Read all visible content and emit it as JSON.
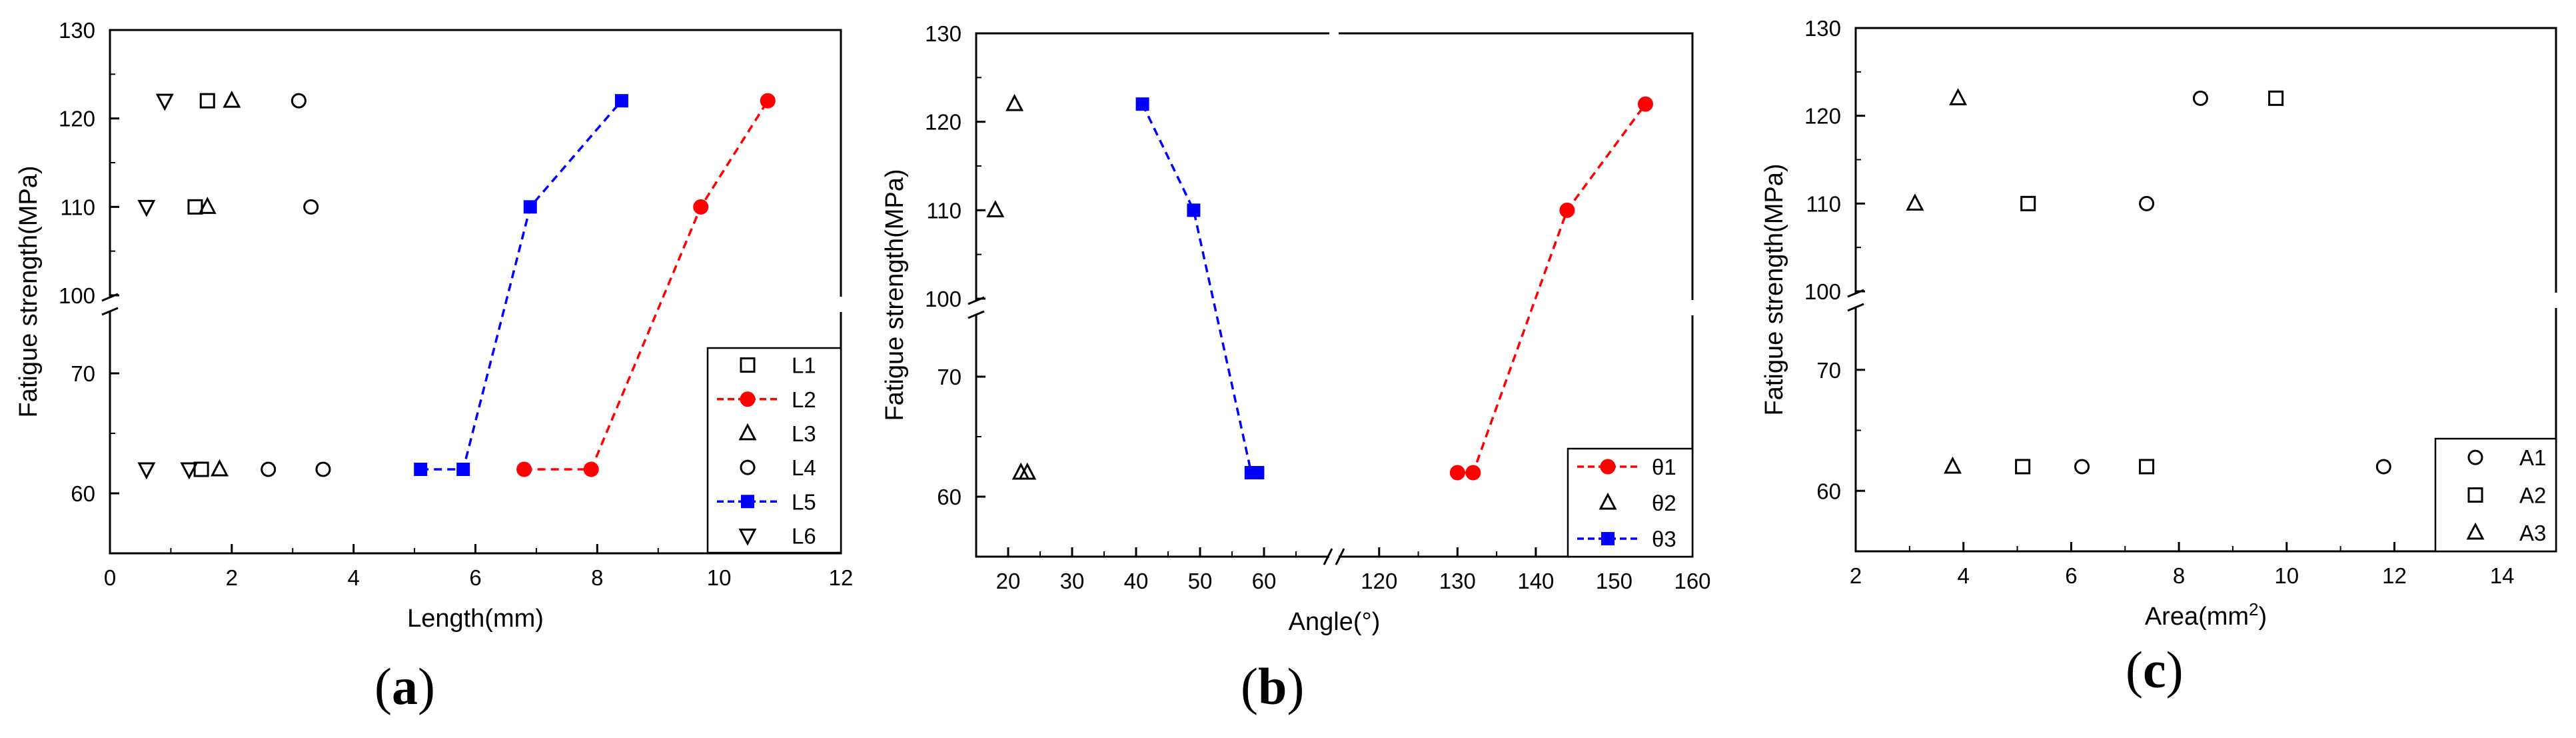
{
  "chart_data": [
    {
      "type": "line",
      "panel_label": "a",
      "xlabel": "Length(mm)",
      "ylabel": "Fatigue strength(MPa)",
      "xlim": [
        0,
        12
      ],
      "xticks": [
        0,
        2,
        4,
        6,
        8,
        10,
        12
      ],
      "ylim": [
        55,
        130
      ],
      "y_axis_break": [
        75,
        100
      ],
      "yticks": [
        60,
        70,
        100,
        110,
        120,
        130
      ],
      "legend_position": "bottom-right",
      "series": [
        {
          "name": "L1",
          "marker": "square",
          "color": "#000000",
          "line": false,
          "points": [
            [
              1.6,
              122
            ],
            [
              1.4,
              110
            ],
            [
              1.5,
              62
            ]
          ]
        },
        {
          "name": "L2",
          "marker": "circle-filled",
          "color": "#ff0000",
          "line": true,
          "points": [
            [
              6.8,
              62
            ],
            [
              7.9,
              62
            ],
            [
              9.7,
              110
            ],
            [
              10.8,
              122
            ]
          ]
        },
        {
          "name": "L3",
          "marker": "triangle-up",
          "color": "#000000",
          "line": false,
          "points": [
            [
              2.0,
              122
            ],
            [
              1.6,
              110
            ],
            [
              1.8,
              62
            ]
          ]
        },
        {
          "name": "L4",
          "marker": "circle",
          "color": "#000000",
          "line": false,
          "points": [
            [
              3.1,
              122
            ],
            [
              3.3,
              110
            ],
            [
              2.6,
              62
            ],
            [
              3.5,
              62
            ]
          ]
        },
        {
          "name": "L5",
          "marker": "square-filled",
          "color": "#0000ff",
          "line": true,
          "points": [
            [
              5.1,
              62
            ],
            [
              5.8,
              62
            ],
            [
              6.9,
              110
            ],
            [
              8.4,
              122
            ]
          ]
        },
        {
          "name": "L6",
          "marker": "triangle-down",
          "color": "#000000",
          "line": false,
          "points": [
            [
              0.9,
              122
            ],
            [
              0.6,
              110
            ],
            [
              0.6,
              62
            ],
            [
              1.3,
              62
            ]
          ]
        }
      ]
    },
    {
      "type": "line",
      "panel_label": "b",
      "xlabel": "Angle(°)",
      "ylabel": "Fatigue strength(MPa)",
      "x_axis_break": [
        60,
        120
      ],
      "x_segments": [
        {
          "range": [
            15,
            70
          ],
          "ticks": [
            20,
            30,
            40,
            50,
            60
          ]
        },
        {
          "range": [
            115,
            160
          ],
          "ticks": [
            120,
            130,
            140,
            150,
            160
          ]
        }
      ],
      "ylim": [
        55,
        130
      ],
      "y_axis_break": [
        75,
        100
      ],
      "yticks": [
        60,
        70,
        100,
        110,
        120,
        130
      ],
      "legend_position": "bottom-right",
      "series": [
        {
          "name": "θ1",
          "marker": "circle-filled",
          "color": "#ff0000",
          "line": true,
          "points": [
            [
              130,
              62
            ],
            [
              132,
              62
            ],
            [
              144,
              110
            ],
            [
              154,
              122
            ]
          ]
        },
        {
          "name": "θ2",
          "marker": "triangle-up",
          "color": "#000000",
          "line": false,
          "points": [
            [
              21,
              122
            ],
            [
              18,
              110
            ],
            [
              22,
              62
            ],
            [
              23,
              62
            ]
          ]
        },
        {
          "name": "θ3",
          "marker": "square-filled",
          "color": "#0000ff",
          "line": true,
          "points": [
            [
              41,
              122
            ],
            [
              49,
              110
            ],
            [
              58,
              62
            ],
            [
              59,
              62
            ]
          ]
        }
      ]
    },
    {
      "type": "scatter",
      "panel_label": "c",
      "xlabel": "Area(mm",
      "xlabel_sup": "2",
      "xlabel_close": ")",
      "ylabel": "Fatigue strength(MPa)",
      "xlim": [
        2,
        15
      ],
      "xticks": [
        2,
        4,
        6,
        8,
        10,
        12,
        14
      ],
      "ylim": [
        55,
        130
      ],
      "y_axis_break": [
        75,
        100
      ],
      "yticks": [
        60,
        70,
        100,
        110,
        120,
        130
      ],
      "legend_position": "bottom-right",
      "series": [
        {
          "name": "A1",
          "marker": "circle",
          "color": "#000000",
          "line": false,
          "points": [
            [
              8.4,
              122
            ],
            [
              7.4,
              110
            ],
            [
              6.2,
              62
            ],
            [
              11.8,
              62
            ]
          ]
        },
        {
          "name": "A2",
          "marker": "square",
          "color": "#000000",
          "line": false,
          "points": [
            [
              9.8,
              122
            ],
            [
              5.2,
              110
            ],
            [
              5.1,
              62
            ],
            [
              7.4,
              62
            ]
          ]
        },
        {
          "name": "A3",
          "marker": "triangle-up",
          "color": "#000000",
          "line": false,
          "points": [
            [
              3.9,
              122
            ],
            [
              3.1,
              110
            ],
            [
              3.8,
              62
            ]
          ]
        }
      ]
    }
  ]
}
